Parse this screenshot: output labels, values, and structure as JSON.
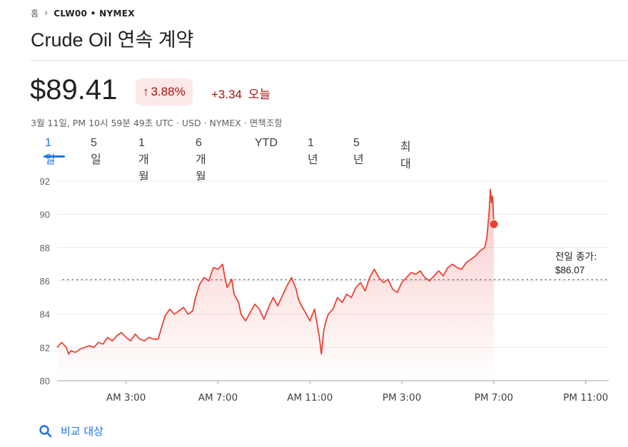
{
  "breadcrumb": {
    "home": "홈",
    "ticker": "CLW00 • NYMEX"
  },
  "title": "Crude Oil 연속 계약",
  "quote": {
    "price": "$89.41",
    "percent_change": "3.88%",
    "abs_change": "+3.34",
    "today_label": "오늘",
    "meta": "3월 11일, PM 10시 59분 49초 UTC · USD · NYMEX · 면책조항"
  },
  "tabs": [
    "1일",
    "5일",
    "1개월",
    "6개월",
    "YTD",
    "1년",
    "5년",
    "최대"
  ],
  "active_tab": "1일",
  "compare": {
    "label": "비교 대상"
  },
  "colors": {
    "line": "#e94235",
    "negative": "#a50e0e",
    "accent": "#1a73e8"
  },
  "chart_data": {
    "type": "line",
    "y_ticks": [
      92,
      90,
      88,
      86,
      84,
      82,
      80
    ],
    "ylim": [
      80,
      92
    ],
    "x_ticks": [
      "AM 3:00",
      "AM 7:00",
      "AM 11:00",
      "PM 3:00",
      "PM 7:00",
      "PM 11:00"
    ],
    "x_tick_hours": [
      3,
      7,
      11,
      15,
      19,
      23
    ],
    "xlim_hours": [
      0,
      24
    ],
    "grid": true,
    "previous_close": {
      "label": "전일 종가:",
      "value_label": "$86.07",
      "value": 86.07
    },
    "last_point": {
      "hour": 19.0,
      "value": 89.41
    },
    "series": [
      {
        "values": [
          [
            0.0,
            82.0
          ],
          [
            0.2,
            82.3
          ],
          [
            0.4,
            82.0
          ],
          [
            0.5,
            81.6
          ],
          [
            0.6,
            81.8
          ],
          [
            0.8,
            81.7
          ],
          [
            1.0,
            81.9
          ],
          [
            1.2,
            82.0
          ],
          [
            1.4,
            82.1
          ],
          [
            1.6,
            82.0
          ],
          [
            1.8,
            82.3
          ],
          [
            2.0,
            82.2
          ],
          [
            2.2,
            82.6
          ],
          [
            2.4,
            82.4
          ],
          [
            2.6,
            82.7
          ],
          [
            2.8,
            82.9
          ],
          [
            3.0,
            82.6
          ],
          [
            3.2,
            82.4
          ],
          [
            3.4,
            82.8
          ],
          [
            3.6,
            82.5
          ],
          [
            3.8,
            82.4
          ],
          [
            4.0,
            82.6
          ],
          [
            4.2,
            82.5
          ],
          [
            4.4,
            82.5
          ],
          [
            4.5,
            83.0
          ],
          [
            4.7,
            83.9
          ],
          [
            4.9,
            84.3
          ],
          [
            5.1,
            84.0
          ],
          [
            5.3,
            84.2
          ],
          [
            5.5,
            84.4
          ],
          [
            5.7,
            84.0
          ],
          [
            5.9,
            84.2
          ],
          [
            6.0,
            84.9
          ],
          [
            6.2,
            85.8
          ],
          [
            6.4,
            86.2
          ],
          [
            6.6,
            86.0
          ],
          [
            6.8,
            86.8
          ],
          [
            7.0,
            86.7
          ],
          [
            7.2,
            87.0
          ],
          [
            7.3,
            86.2
          ],
          [
            7.4,
            85.6
          ],
          [
            7.6,
            86.1
          ],
          [
            7.7,
            85.2
          ],
          [
            7.9,
            84.7
          ],
          [
            8.0,
            84.0
          ],
          [
            8.2,
            83.6
          ],
          [
            8.4,
            84.1
          ],
          [
            8.6,
            84.6
          ],
          [
            8.8,
            84.3
          ],
          [
            9.0,
            83.7
          ],
          [
            9.2,
            84.4
          ],
          [
            9.4,
            85.0
          ],
          [
            9.6,
            84.5
          ],
          [
            9.8,
            85.1
          ],
          [
            10.0,
            85.7
          ],
          [
            10.2,
            86.2
          ],
          [
            10.4,
            85.5
          ],
          [
            10.5,
            84.9
          ],
          [
            10.6,
            84.6
          ],
          [
            10.8,
            84.1
          ],
          [
            11.0,
            83.6
          ],
          [
            11.2,
            84.3
          ],
          [
            11.3,
            83.5
          ],
          [
            11.4,
            82.7
          ],
          [
            11.5,
            81.6
          ],
          [
            11.6,
            83.0
          ],
          [
            11.7,
            83.6
          ],
          [
            11.8,
            84.0
          ],
          [
            12.0,
            84.3
          ],
          [
            12.2,
            85.0
          ],
          [
            12.4,
            84.7
          ],
          [
            12.6,
            85.2
          ],
          [
            12.8,
            85.0
          ],
          [
            13.0,
            85.6
          ],
          [
            13.2,
            85.9
          ],
          [
            13.4,
            85.4
          ],
          [
            13.6,
            86.2
          ],
          [
            13.8,
            86.7
          ],
          [
            14.0,
            86.2
          ],
          [
            14.2,
            85.9
          ],
          [
            14.4,
            86.1
          ],
          [
            14.6,
            85.5
          ],
          [
            14.8,
            85.3
          ],
          [
            15.0,
            85.9
          ],
          [
            15.2,
            86.2
          ],
          [
            15.4,
            86.5
          ],
          [
            15.6,
            86.4
          ],
          [
            15.8,
            86.6
          ],
          [
            16.0,
            86.2
          ],
          [
            16.2,
            86.0
          ],
          [
            16.4,
            86.3
          ],
          [
            16.6,
            86.6
          ],
          [
            16.8,
            86.3
          ],
          [
            17.0,
            86.8
          ],
          [
            17.2,
            87.0
          ],
          [
            17.4,
            86.8
          ],
          [
            17.6,
            86.7
          ],
          [
            17.8,
            87.1
          ],
          [
            18.0,
            87.3
          ],
          [
            18.2,
            87.5
          ],
          [
            18.4,
            87.8
          ],
          [
            18.6,
            88.0
          ],
          [
            18.7,
            88.6
          ],
          [
            18.8,
            90.2
          ],
          [
            18.85,
            91.5
          ],
          [
            18.9,
            90.7
          ],
          [
            18.95,
            91.1
          ],
          [
            19.0,
            89.41
          ]
        ]
      }
    ]
  }
}
